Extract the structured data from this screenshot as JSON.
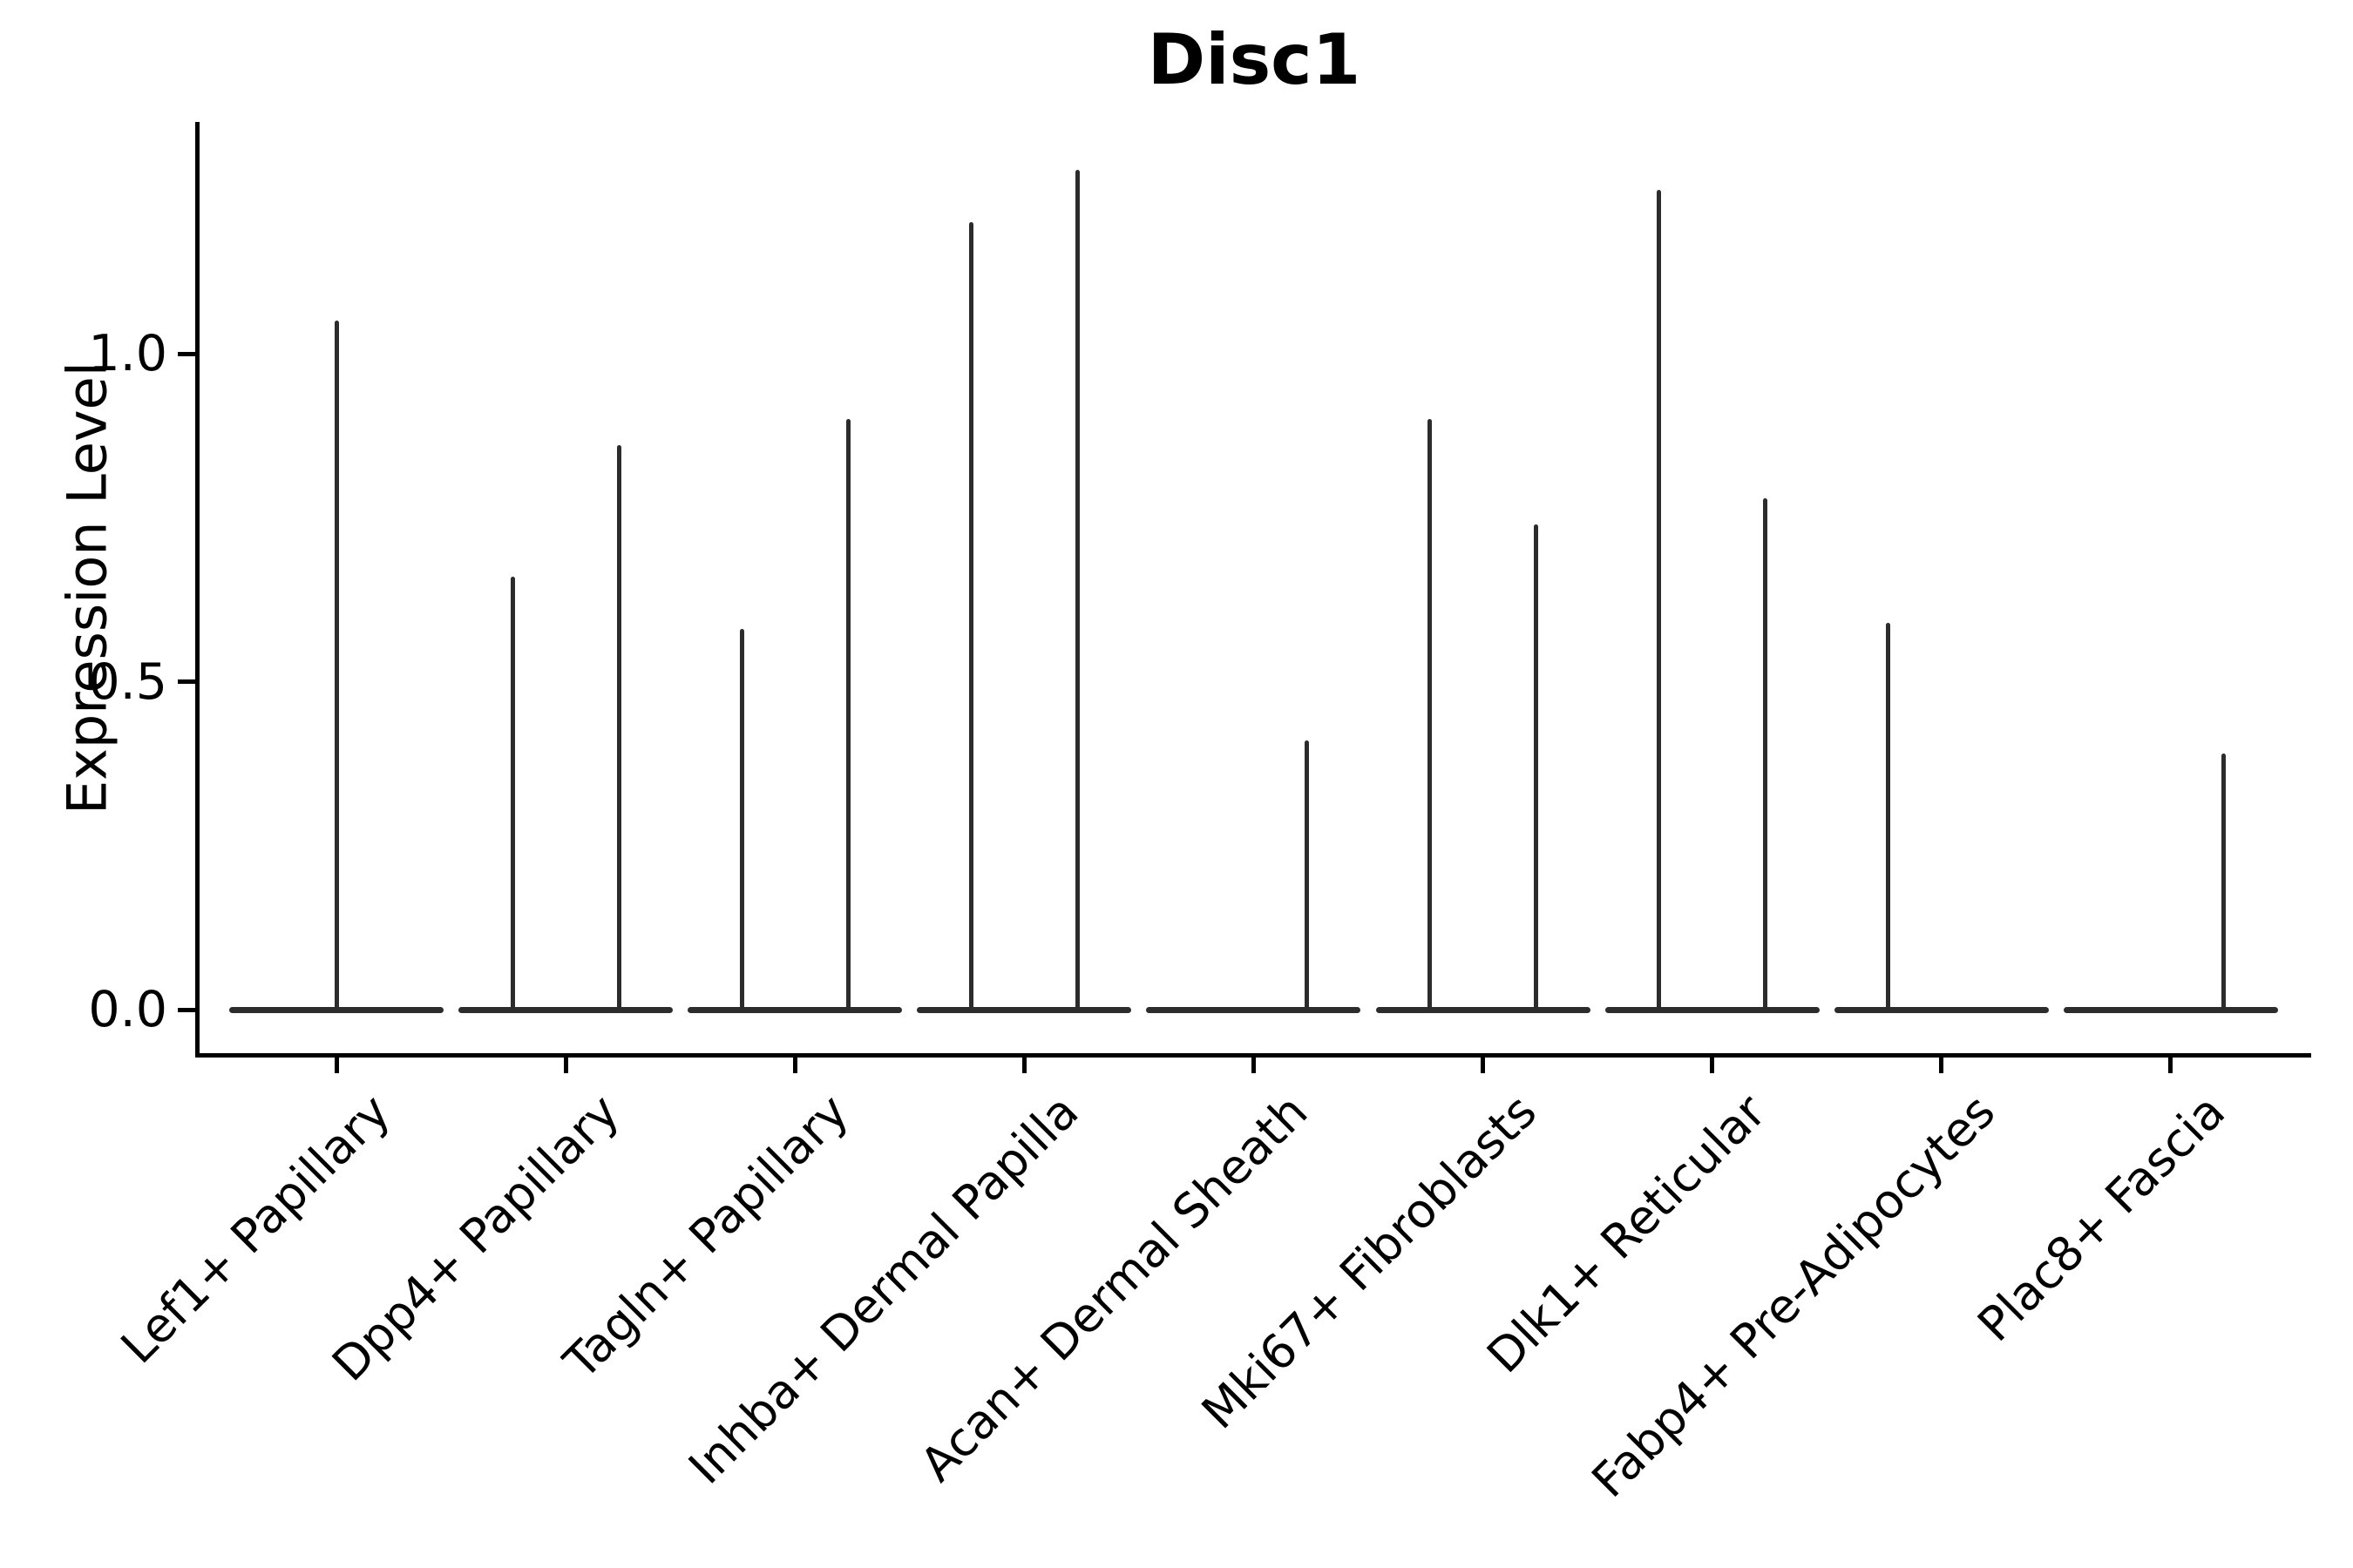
{
  "chart_data": {
    "type": "violin",
    "title": "Disc1",
    "xlabel": "",
    "ylabel": "Expression Level",
    "ytick_labels": [
      "0.0",
      "0.5",
      "1.0"
    ],
    "ytick_values": [
      0.0,
      0.5,
      1.0
    ],
    "ylim": [
      -0.07,
      1.35
    ],
    "grid": false,
    "legend": null,
    "ink_color": "#2c2c2c",
    "axis_color": "#000000",
    "background_color": "#ffffff",
    "categories": [
      "Lef1+ Papillary",
      "Dpp4+ Papillary",
      "Tagln+ Papillary",
      "Inhba+ Dermal Papilla",
      "Acan+ Dermal Sheath",
      "Mki67+ Fibroblasts",
      "Dlk1+ Reticular",
      "Fabp4+ Pre-Adipocytes",
      "Plac8+ Fascia"
    ],
    "violins": [
      {
        "category": "Lef1+ Papillary",
        "spikes": [
          {
            "pos": "center",
            "max": 1.05
          }
        ]
      },
      {
        "category": "Dpp4+ Papillary",
        "spikes": [
          {
            "pos": "left",
            "max": 0.66
          },
          {
            "pos": "right",
            "max": 0.86
          }
        ]
      },
      {
        "category": "Tagln+ Papillary",
        "spikes": [
          {
            "pos": "left",
            "max": 0.58
          },
          {
            "pos": "right",
            "max": 0.9
          }
        ]
      },
      {
        "category": "Inhba+ Dermal Papilla",
        "spikes": [
          {
            "pos": "left",
            "max": 1.2
          },
          {
            "pos": "right",
            "max": 1.28
          }
        ]
      },
      {
        "category": "Acan+ Dermal Sheath",
        "spikes": [
          {
            "pos": "left",
            "max": 0.0
          },
          {
            "pos": "right",
            "max": 0.41
          }
        ]
      },
      {
        "category": "Mki67+ Fibroblasts",
        "spikes": [
          {
            "pos": "left",
            "max": 0.9
          },
          {
            "pos": "right",
            "max": 0.74
          }
        ]
      },
      {
        "category": "Dlk1+ Reticular",
        "spikes": [
          {
            "pos": "left",
            "max": 1.25
          },
          {
            "pos": "right",
            "max": 0.78
          }
        ]
      },
      {
        "category": "Fabp4+ Pre-Adipocytes",
        "spikes": [
          {
            "pos": "left",
            "max": 0.59
          },
          {
            "pos": "right",
            "max": 0.0
          }
        ]
      },
      {
        "category": "Plac8+ Fascia",
        "spikes": [
          {
            "pos": "left",
            "max": 0.0
          },
          {
            "pos": "right",
            "max": 0.39
          }
        ]
      }
    ]
  }
}
